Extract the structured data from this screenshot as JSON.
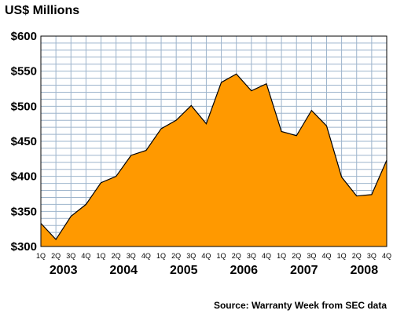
{
  "chart_data": {
    "type": "area",
    "title": "US$ Millions",
    "source_note": "Source: Warranty Week from SEC data",
    "ylim": [
      300,
      600
    ],
    "y_ticks": [
      "$300",
      "$350",
      "$400",
      "$450",
      "$500",
      "$550",
      "$600"
    ],
    "y_tick_values": [
      300,
      350,
      400,
      450,
      500,
      550,
      600
    ],
    "quarter_labels": [
      "1Q",
      "2Q",
      "3Q",
      "4Q",
      "1Q",
      "2Q",
      "3Q",
      "4Q",
      "1Q",
      "2Q",
      "3Q",
      "4Q",
      "1Q",
      "2Q",
      "3Q",
      "4Q",
      "1Q",
      "2Q",
      "3Q",
      "4Q",
      "1Q",
      "2Q",
      "3Q",
      "4Q"
    ],
    "years": [
      "2003",
      "2004",
      "2005",
      "2006",
      "2007",
      "2008"
    ],
    "grid": true,
    "fill_color": "#FF9900",
    "values": [
      333,
      310,
      343,
      360,
      391,
      400,
      430,
      437,
      468,
      480,
      501,
      475,
      534,
      546,
      522,
      532,
      464,
      458,
      494,
      472,
      399,
      372,
      374,
      423
    ]
  }
}
